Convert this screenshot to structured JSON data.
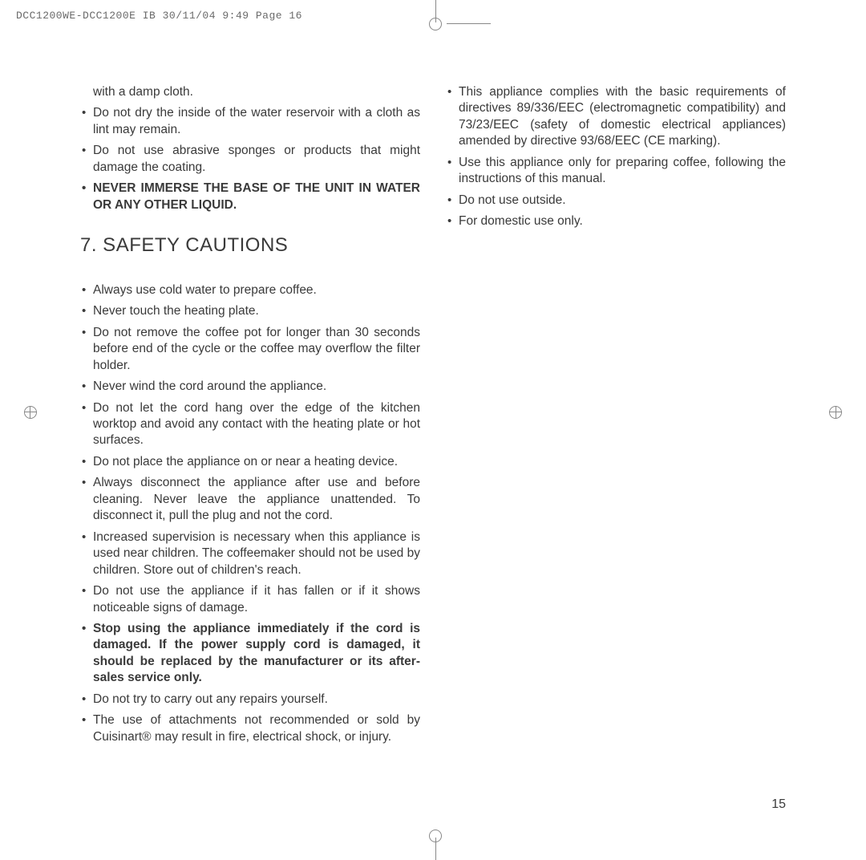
{
  "header": {
    "filename": "DCC1200WE-DCC1200E IB  30/11/04  9:49  Page 16"
  },
  "left": {
    "lead": "with a damp cloth.",
    "bullets_top": [
      "Do not dry the inside of the water reservoir with a cloth as lint may remain.",
      "Do not use abrasive sponges or products that might damage the coating."
    ],
    "bullet_bold": "NEVER IMMERSE THE BASE OF THE UNIT IN WATER OR ANY OTHER LIQUID.",
    "heading": "7. SAFETY CAUTIONS",
    "bullets_main": [
      "Always use cold water to prepare coffee.",
      "Never touch the heating plate.",
      "Do not remove the coffee pot for longer than 30 seconds before end of the cycle or the coffee may overflow the filter holder.",
      "Never wind the cord around the appliance.",
      "Do not let the cord hang over the edge of the kitchen worktop and avoid any contact with the heating plate or hot surfaces.",
      "Do not place the appliance on or near a heating device.",
      "Always disconnect the appliance after use and before cleaning. Never leave the appliance unattended. To disconnect it, pull the plug and not the cord.",
      "Increased supervision is necessary when this appliance is used near children. The coffeemaker should not be used by children. Store out of children's reach.",
      "Do not use the appliance if it has fallen or if it shows noticeable signs of damage."
    ],
    "bullet_bold2": "Stop using the appliance immediately if the cord is damaged. If the power supply cord is damaged, it should be replaced by the manufacturer or its after-sales service only.",
    "bullets_after": [
      "Do not try to carry out any repairs yourself.",
      "The use of attachments not recommended or sold by Cuisinart® may result in fire, electrical shock, or injury."
    ]
  },
  "right": {
    "bullets": [
      "This appliance complies with the basic requirements of directives 89/336/EEC (electromagnetic compatibility) and 73/23/EEC (safety of domestic electrical appliances) amended by directive 93/68/EEC (CE marking).",
      "Use this appliance only for preparing coffee, following the instructions of this manual.",
      "Do not use outside.",
      "For domestic use only."
    ]
  },
  "page_number": "15"
}
